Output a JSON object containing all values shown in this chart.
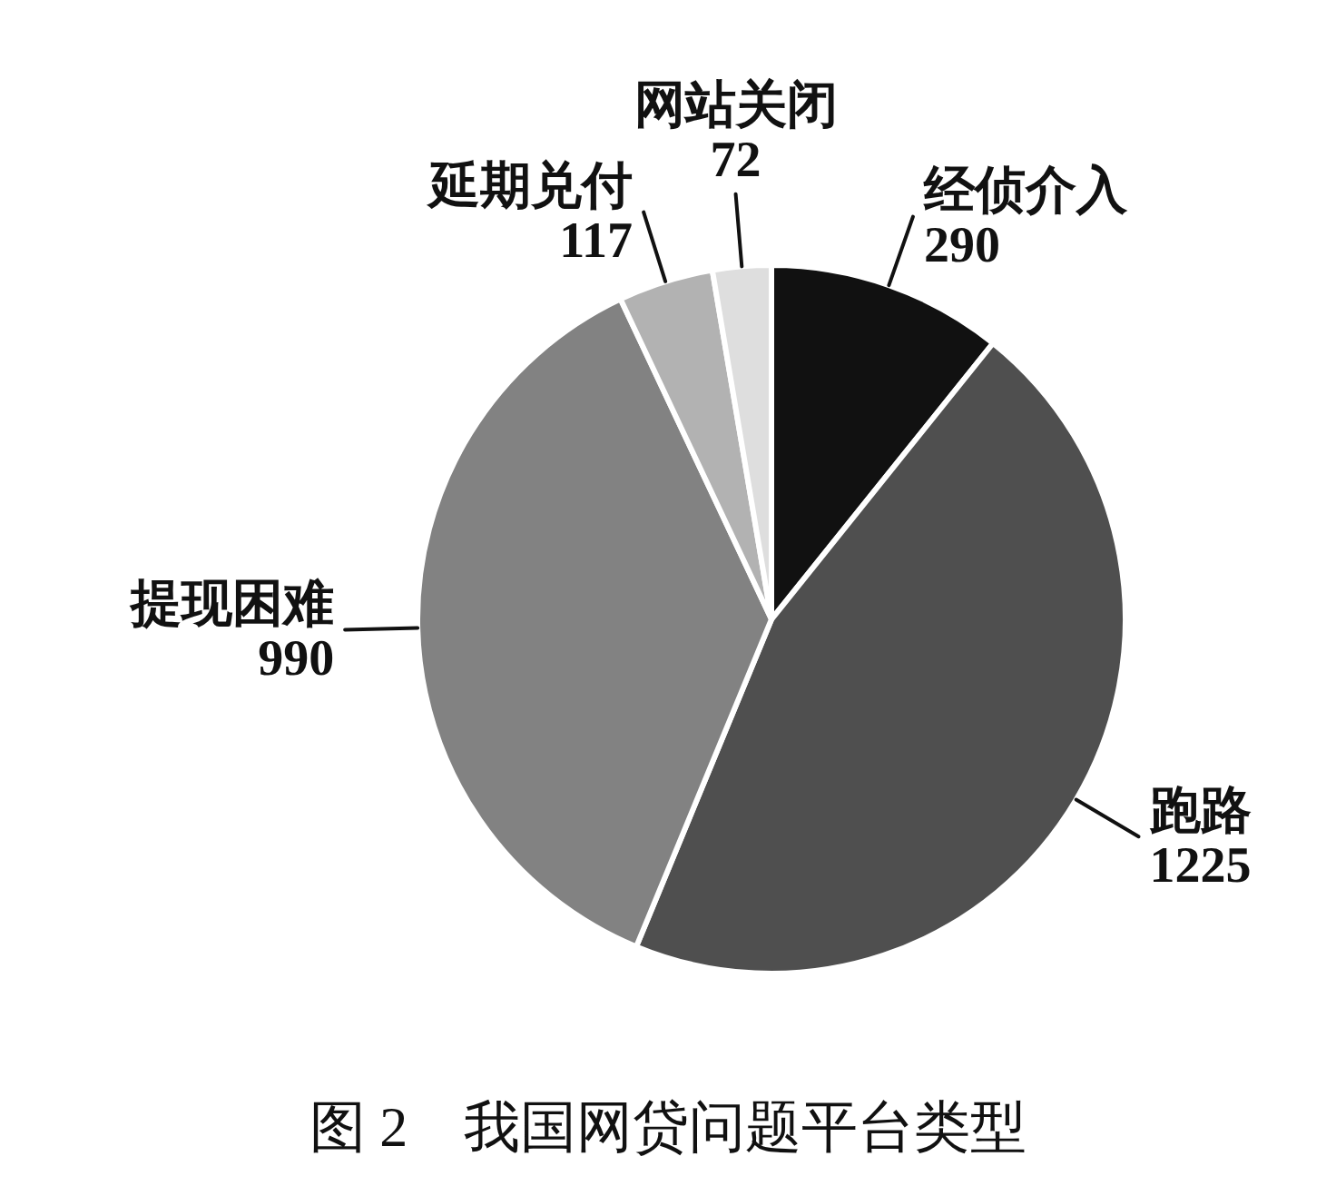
{
  "chart_data": {
    "type": "pie",
    "title": "图 2　我国网贷问题平台类型",
    "categories": [
      "经侦介入",
      "跑路",
      "提现困难",
      "延期兑付",
      "网站关闭"
    ],
    "values": [
      290,
      1225,
      990,
      117,
      72
    ],
    "colors": [
      "#111111",
      "#4f4f4f",
      "#828282",
      "#b2b2b2",
      "#dedede"
    ],
    "data_labels": true
  }
}
